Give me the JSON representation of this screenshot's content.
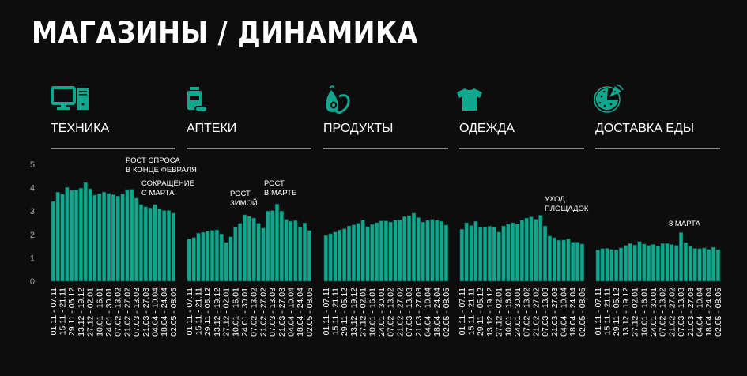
{
  "title": "МАГАЗИНЫ / ДИНАМИКА",
  "accent": "#0fa88e",
  "panels": [
    {
      "label": "ТЕХНИКА",
      "icon": "computer-icon"
    },
    {
      "label": "АПТЕКИ",
      "icon": "pill-bottle-icon"
    },
    {
      "label": "ПРОДУКТЫ",
      "icon": "avocado-pear-icon"
    },
    {
      "label": "ОДЕЖДА",
      "icon": "tshirt-icon"
    },
    {
      "label": "ДОСТАВКА ЕДЫ",
      "icon": "pizza-icon"
    }
  ],
  "chart_data": {
    "type": "bar",
    "ylim": [
      0,
      5
    ],
    "y_ticks": [
      "0",
      "1",
      "2",
      "3",
      "4",
      "5"
    ],
    "x_tick_labels": [
      "01.11 - 07.11",
      "15.11 - 21.11",
      "29.11 - 05.12",
      "13.12 - 19.12",
      "27.12 - 02.01",
      "10.01 - 16.01",
      "24.01 - 30.01",
      "07.02 - 13.02",
      "21.02 - 27.02",
      "07.03 - 13.03",
      "21.03 - 27.03",
      "04.04 - 10.04",
      "18.04 - 24.04",
      "02.05 - 08.05"
    ],
    "series": [
      {
        "name": "ТЕХНИКА",
        "values": [
          3.41,
          3.81,
          3.72,
          4.01,
          3.89,
          3.9,
          3.98,
          4.22,
          3.95,
          3.68,
          3.74,
          3.81,
          3.75,
          3.7,
          3.64,
          3.73,
          3.92,
          3.93,
          3.55,
          3.28,
          3.18,
          3.13,
          3.28,
          3.1,
          3.02,
          3.02,
          2.91
        ],
        "annotations": [
          {
            "text": [
              "РОСТ СПРОСА",
              "В КОНЦЕ ФЕВРАЛЯ"
            ]
          },
          {
            "text": [
              "СОКРАЩЕНИЕ",
              "С МАРТА"
            ]
          }
        ]
      },
      {
        "name": "АПТЕКИ",
        "values": [
          1.8,
          1.86,
          2.05,
          2.09,
          2.14,
          2.17,
          2.19,
          2.02,
          1.66,
          1.9,
          2.31,
          2.47,
          2.84,
          2.77,
          2.7,
          2.48,
          2.27,
          3.0,
          3.02,
          3.3,
          3.0,
          2.64,
          2.56,
          2.59,
          2.32,
          2.49,
          2.17
        ],
        "annotations": [
          {
            "text": [
              "РОСТ",
              "ЗИМОЙ"
            ]
          },
          {
            "text": [
              "РОСТ",
              "В МАРТЕ"
            ]
          }
        ]
      },
      {
        "name": "ПРОДУКТЫ",
        "values": [
          1.95,
          2.03,
          2.1,
          2.19,
          2.24,
          2.36,
          2.41,
          2.48,
          2.61,
          2.33,
          2.43,
          2.5,
          2.58,
          2.58,
          2.53,
          2.61,
          2.61,
          2.76,
          2.8,
          2.91,
          2.72,
          2.53,
          2.61,
          2.64,
          2.61,
          2.56,
          2.4
        ],
        "annotations": []
      },
      {
        "name": "ОДЕЖДА",
        "values": [
          2.22,
          2.5,
          2.38,
          2.56,
          2.3,
          2.31,
          2.35,
          2.31,
          2.1,
          2.36,
          2.44,
          2.5,
          2.45,
          2.61,
          2.7,
          2.75,
          2.65,
          2.82,
          2.36,
          1.93,
          1.86,
          1.75,
          1.76,
          1.81,
          1.67,
          1.67,
          1.59
        ],
        "annotations": [
          {
            "text": [
              "УХОД",
              "ПЛОЩАДОК"
            ]
          }
        ]
      },
      {
        "name": "ДОСТАВКА ЕДЫ",
        "values": [
          1.33,
          1.39,
          1.4,
          1.36,
          1.34,
          1.42,
          1.53,
          1.61,
          1.55,
          1.7,
          1.59,
          1.53,
          1.57,
          1.5,
          1.61,
          1.61,
          1.57,
          1.53,
          2.08,
          1.65,
          1.49,
          1.4,
          1.39,
          1.42,
          1.36,
          1.45,
          1.35
        ],
        "annotations": [
          {
            "text": [
              "8 МАРТА"
            ]
          }
        ]
      }
    ]
  }
}
